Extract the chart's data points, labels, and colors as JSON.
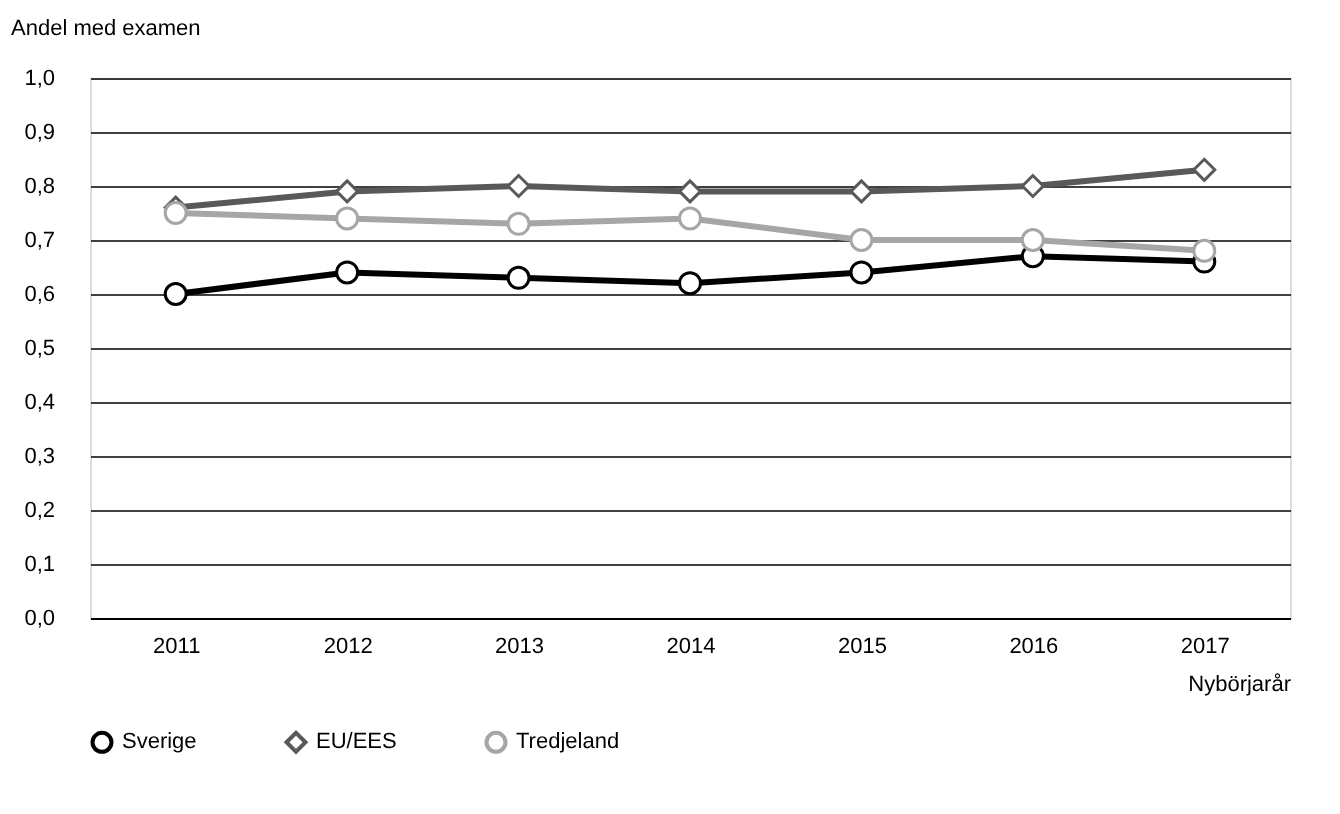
{
  "chart_data": {
    "type": "line",
    "ylabel": "Andel med examen",
    "xlabel": "Nybörjarår",
    "categories": [
      "2011",
      "2012",
      "2013",
      "2014",
      "2015",
      "2016",
      "2017"
    ],
    "series": [
      {
        "name": "Sverige",
        "color": "#000000",
        "marker": "circle",
        "values": [
          0.6,
          0.64,
          0.63,
          0.62,
          0.64,
          0.67,
          0.66
        ]
      },
      {
        "name": "EU/EES",
        "color": "#595959",
        "marker": "diamond",
        "values": [
          0.76,
          0.79,
          0.8,
          0.79,
          0.79,
          0.8,
          0.83
        ]
      },
      {
        "name": "Tredjeland",
        "color": "#a6a6a6",
        "marker": "circle",
        "values": [
          0.75,
          0.74,
          0.73,
          0.74,
          0.7,
          0.7,
          0.68
        ]
      }
    ],
    "ylim": [
      0,
      1
    ],
    "yticks": [
      {
        "value": 0,
        "label": "0,0"
      },
      {
        "value": 0.1,
        "label": "0,1"
      },
      {
        "value": 0.2,
        "label": "0,2"
      },
      {
        "value": 0.3,
        "label": "0,3"
      },
      {
        "value": 0.4,
        "label": "0,4"
      },
      {
        "value": 0.5,
        "label": "0,5"
      },
      {
        "value": 0.6,
        "label": "0,6"
      },
      {
        "value": 0.7,
        "label": "0,7"
      },
      {
        "value": 0.8,
        "label": "0,8"
      },
      {
        "value": 0.9,
        "label": "0,9"
      },
      {
        "value": 1.0,
        "label": "1,0"
      }
    ],
    "grid": "y",
    "legend": "bottom",
    "line_style": "solid"
  }
}
